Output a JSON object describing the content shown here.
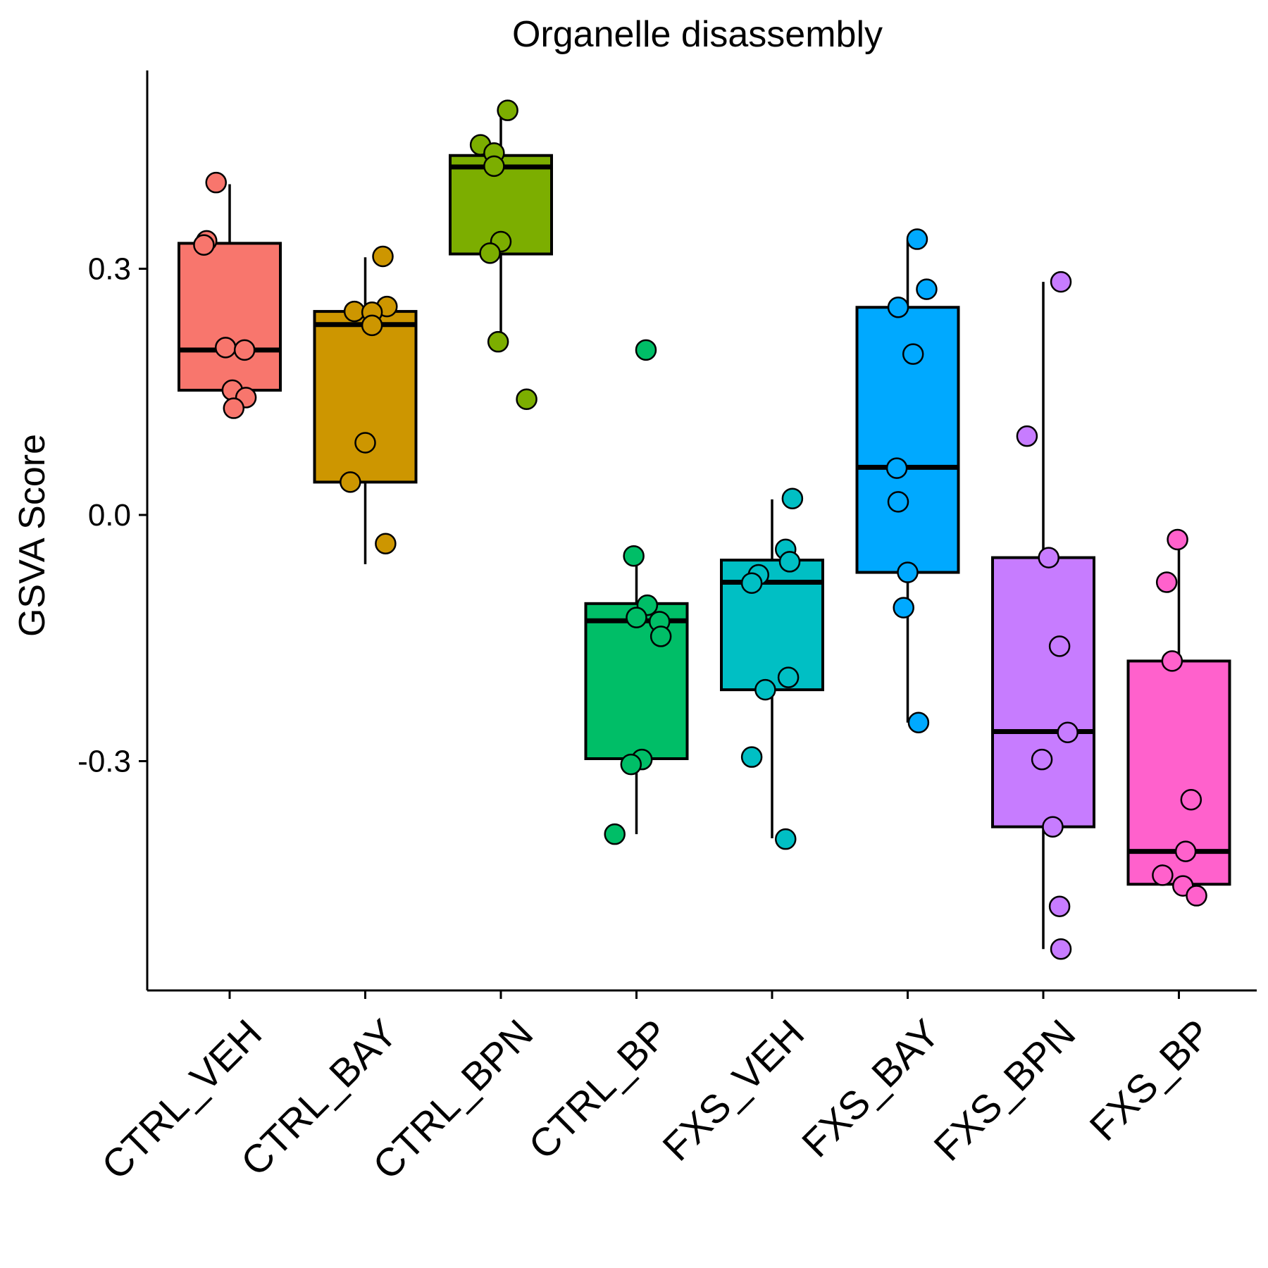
{
  "chart_data": {
    "type": "box",
    "title": "Organelle disassembly",
    "xlabel": "",
    "ylabel": "GSVA Score",
    "ylim": [
      -0.58,
      0.54
    ],
    "yticks": [
      -0.3,
      0.0,
      0.3
    ],
    "ytick_labels": [
      "-0.3",
      "0.0",
      "0.3"
    ],
    "grid": false,
    "legend": "none",
    "categories": [
      "CTRL_VEH",
      "CTRL_BAY",
      "CTRL_BPN",
      "CTRL_BP",
      "FXS_VEH",
      "FXS_BAY",
      "FXS_BPN",
      "FXS_BP"
    ],
    "colors": [
      "#F8766D",
      "#CD9600",
      "#7CAE00",
      "#00BE67",
      "#00BFC4",
      "#00A9FF",
      "#C77CFF",
      "#FF61CC"
    ],
    "boxes": [
      {
        "q1": 0.152,
        "median": 0.201,
        "q3": 0.331,
        "whisker_low": 0.13,
        "whisker_high": 0.403
      },
      {
        "q1": 0.04,
        "median": 0.232,
        "q3": 0.248,
        "whisker_low": -0.06,
        "whisker_high": 0.314
      },
      {
        "q1": 0.318,
        "median": 0.424,
        "q3": 0.438,
        "whisker_low": 0.213,
        "whisker_high": 0.492
      },
      {
        "q1": -0.297,
        "median": -0.129,
        "q3": -0.108,
        "whisker_low": -0.389,
        "whisker_high": -0.057
      },
      {
        "q1": -0.213,
        "median": -0.082,
        "q3": -0.055,
        "whisker_low": -0.394,
        "whisker_high": 0.019
      },
      {
        "q1": -0.07,
        "median": 0.058,
        "q3": 0.253,
        "whisker_low": -0.253,
        "whisker_high": 0.335
      },
      {
        "q1": -0.38,
        "median": -0.264,
        "q3": -0.052,
        "whisker_low": -0.529,
        "whisker_high": 0.284
      },
      {
        "q1": -0.45,
        "median": -0.41,
        "q3": -0.178,
        "whisker_low": -0.462,
        "whisker_high": -0.03
      }
    ],
    "points": [
      {
        "x": [
          -0.1,
          -0.17,
          -0.19,
          -0.03,
          0.11,
          0.02,
          0.12,
          0.03
        ],
        "y": [
          0.405,
          0.334,
          0.329,
          0.204,
          0.201,
          0.152,
          0.143,
          0.13
        ]
      },
      {
        "x": [
          0.13,
          0.16,
          -0.08,
          0.05,
          0.05,
          0.0,
          -0.11,
          0.15
        ],
        "y": [
          0.315,
          0.254,
          0.248,
          0.247,
          0.231,
          0.088,
          0.04,
          -0.035
        ]
      },
      {
        "x": [
          0.05,
          -0.15,
          -0.05,
          -0.05,
          0.0,
          -0.08,
          -0.02,
          0.19
        ],
        "y": [
          0.493,
          0.451,
          0.441,
          0.425,
          0.333,
          0.319,
          0.211,
          0.141
        ]
      },
      {
        "x": [
          0.07,
          -0.02,
          0.08,
          0.0,
          0.17,
          0.18,
          0.04,
          -0.04,
          -0.16
        ],
        "y": [
          0.201,
          -0.05,
          -0.11,
          -0.125,
          -0.13,
          -0.148,
          -0.298,
          -0.304,
          -0.389
        ]
      },
      {
        "x": [
          0.15,
          0.1,
          -0.1,
          0.13,
          -0.15,
          0.12,
          -0.05,
          -0.15,
          0.1
        ],
        "y": [
          0.02,
          -0.042,
          -0.073,
          -0.057,
          -0.083,
          -0.198,
          -0.213,
          -0.295,
          -0.395
        ]
      },
      {
        "x": [
          0.07,
          0.14,
          -0.07,
          0.04,
          -0.08,
          -0.07,
          0.0,
          -0.03,
          0.08
        ],
        "y": [
          0.336,
          0.275,
          0.253,
          0.196,
          0.057,
          0.016,
          -0.07,
          -0.113,
          -0.253
        ]
      },
      {
        "x": [
          0.13,
          -0.12,
          0.04,
          0.12,
          0.18,
          -0.01,
          0.07,
          0.12,
          0.13
        ],
        "y": [
          0.284,
          0.096,
          -0.052,
          -0.16,
          -0.265,
          -0.298,
          -0.38,
          -0.477,
          -0.529
        ]
      },
      {
        "x": [
          -0.01,
          -0.09,
          -0.05,
          0.09,
          0.05,
          -0.12,
          0.03,
          0.13
        ],
        "y": [
          -0.03,
          -0.082,
          -0.178,
          -0.347,
          -0.41,
          -0.439,
          -0.452,
          -0.464
        ]
      }
    ]
  }
}
